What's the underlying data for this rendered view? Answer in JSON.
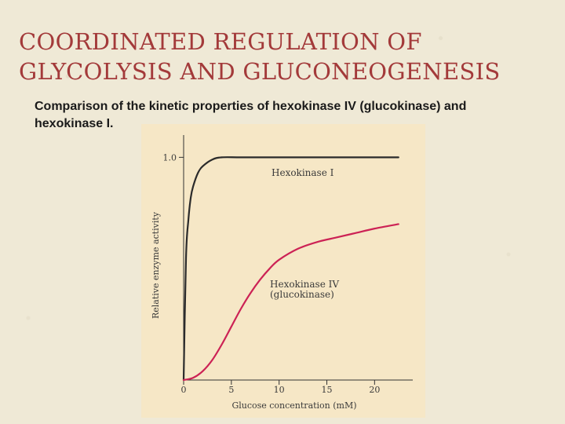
{
  "slide": {
    "title_line1": "COORDINATED REGULATION OF",
    "title_line2": "GLYCOLYSIS AND GLUCONEOGENESIS",
    "caption": "Comparison of the kinetic properties of hexokinase IV (glucokinase) and hexokinase I."
  },
  "chart_data": {
    "type": "line",
    "xlabel": "Glucose concentration (mM)",
    "ylabel": "Relative enzyme activity",
    "xlim": [
      0,
      24
    ],
    "ylim": [
      0,
      1.1
    ],
    "x_ticks": [
      "0",
      "5",
      "10",
      "15",
      "20"
    ],
    "x_tick_values": [
      0,
      5,
      10,
      15,
      20
    ],
    "y_ticks": [
      "1.0"
    ],
    "y_tick_values": [
      1.0
    ],
    "plot_background": "#f6e7c6",
    "series": [
      {
        "name": "Hexokinase I",
        "color": "#2b2b2b",
        "x": [
          0,
          0.25,
          0.5,
          0.75,
          1,
          1.5,
          2,
          3,
          4,
          6,
          10,
          15,
          20,
          22.5
        ],
        "y": [
          0,
          0.55,
          0.72,
          0.82,
          0.87,
          0.93,
          0.96,
          0.99,
          1.0,
          1.0,
          1.0,
          1.0,
          1.0,
          1.0
        ]
      },
      {
        "name": "Hexokinase IV\n(glucokinase)",
        "color": "#cc2255",
        "x": [
          0,
          1,
          2,
          3,
          4,
          5,
          6,
          7,
          8,
          9,
          10,
          12,
          14,
          16,
          18,
          20,
          22.5
        ],
        "y": [
          0,
          0.01,
          0.04,
          0.09,
          0.16,
          0.24,
          0.32,
          0.39,
          0.45,
          0.5,
          0.54,
          0.59,
          0.62,
          0.64,
          0.66,
          0.68,
          0.7
        ]
      }
    ]
  }
}
